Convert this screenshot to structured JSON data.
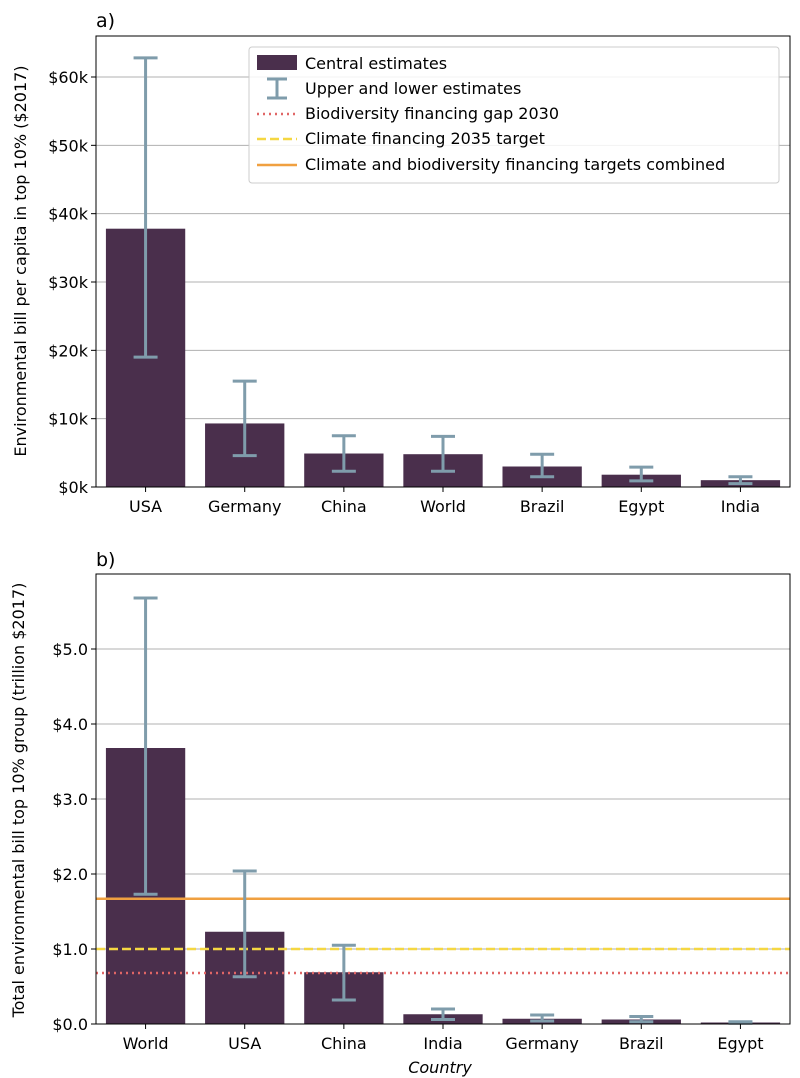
{
  "colors": {
    "bar": "#4a2f4c",
    "error": "#7f9cab",
    "grid": "#b0b0b0",
    "biodiversity": "#e06666",
    "climate": "#f5d742",
    "combined": "#f0a040",
    "legend_border": "#cccccc"
  },
  "legend": {
    "central": "Central estimates",
    "error": "Upper and lower estimates",
    "biodiversity": "Biodiversity financing gap 2030",
    "climate": "Climate financing 2035 target",
    "combined": "Climate and biodiversity financing targets combined"
  },
  "chart_data": [
    {
      "type": "bar",
      "panel_label": "a)",
      "ylabel": "Environmental bill per capita in top 10% ($2017)",
      "xlabel": "",
      "ylim": [
        0,
        66000
      ],
      "yticks": [
        0,
        10000,
        20000,
        30000,
        40000,
        50000,
        60000
      ],
      "ytick_labels": [
        "$0k",
        "$10k",
        "$20k",
        "$30k",
        "$40k",
        "$50k",
        "$60k"
      ],
      "grid": "horizontal",
      "legend_position": "upper-right",
      "categories": [
        "USA",
        "Germany",
        "China",
        "World",
        "Brazil",
        "Egypt",
        "India"
      ],
      "values": [
        37800,
        9300,
        4900,
        4800,
        3000,
        1800,
        1000
      ],
      "lower": [
        19000,
        4600,
        2300,
        2300,
        1500,
        900,
        500
      ],
      "upper": [
        62800,
        15500,
        7500,
        7400,
        4800,
        2900,
        1500
      ]
    },
    {
      "type": "bar",
      "panel_label": "b)",
      "ylabel": "Total environmental bill top 10% group (trillion $2017)",
      "xlabel": "Country",
      "ylim": [
        0,
        6.0
      ],
      "yticks": [
        0,
        1,
        2,
        3,
        4,
        5
      ],
      "ytick_labels": [
        "$0.0",
        "$1.0",
        "$2.0",
        "$3.0",
        "$4.0",
        "$5.0"
      ],
      "grid": "horizontal",
      "categories": [
        "World",
        "USA",
        "China",
        "India",
        "Germany",
        "Brazil",
        "Egypt"
      ],
      "values": [
        3.68,
        1.23,
        0.69,
        0.13,
        0.07,
        0.06,
        0.02
      ],
      "lower": [
        1.73,
        0.63,
        0.32,
        0.06,
        0.04,
        0.03,
        0.01
      ],
      "upper": [
        5.68,
        2.04,
        1.05,
        0.2,
        0.12,
        0.1,
        0.03
      ],
      "hlines": [
        {
          "key": "combined",
          "value": 1.67
        },
        {
          "key": "climate",
          "value": 1.0
        },
        {
          "key": "biodiversity",
          "value": 0.68
        }
      ]
    }
  ]
}
